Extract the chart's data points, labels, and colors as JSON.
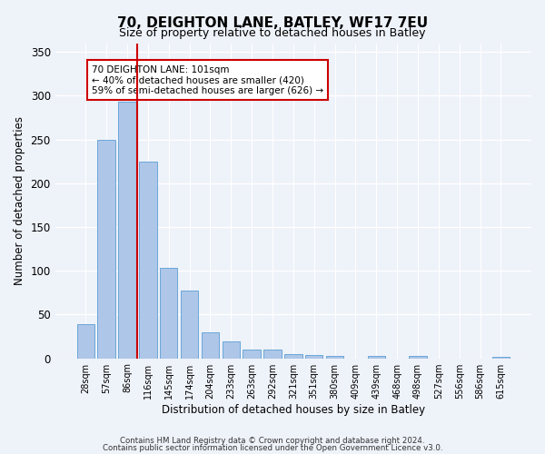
{
  "title": "70, DEIGHTON LANE, BATLEY, WF17 7EU",
  "subtitle": "Size of property relative to detached houses in Batley",
  "xlabel": "Distribution of detached houses by size in Batley",
  "ylabel": "Number of detached properties",
  "categories": [
    "28sqm",
    "57sqm",
    "86sqm",
    "116sqm",
    "145sqm",
    "174sqm",
    "204sqm",
    "233sqm",
    "263sqm",
    "292sqm",
    "321sqm",
    "351sqm",
    "380sqm",
    "409sqm",
    "439sqm",
    "468sqm",
    "498sqm",
    "527sqm",
    "556sqm",
    "586sqm",
    "615sqm"
  ],
  "values": [
    39,
    250,
    293,
    225,
    103,
    77,
    30,
    19,
    10,
    10,
    5,
    4,
    3,
    0,
    3,
    0,
    3,
    0,
    0,
    0,
    2
  ],
  "bar_color": "#aec6e8",
  "bar_edge_color": "#5a9fd4",
  "vline_color": "#cc0000",
  "vline_pos": 2.5,
  "annotation_title": "70 DEIGHTON LANE: 101sqm",
  "annotation_line1": "← 40% of detached houses are smaller (420)",
  "annotation_line2": "59% of semi-detached houses are larger (626) →",
  "annotation_box_color": "#ffffff",
  "annotation_box_edge": "#cc0000",
  "ylim": [
    0,
    360
  ],
  "yticks": [
    0,
    50,
    100,
    150,
    200,
    250,
    300,
    350
  ],
  "background_color": "#eef2f9",
  "grid_color": "#ffffff",
  "title_fontsize": 11,
  "subtitle_fontsize": 9,
  "footer1": "Contains HM Land Registry data © Crown copyright and database right 2024.",
  "footer2": "Contains public sector information licensed under the Open Government Licence v3.0."
}
